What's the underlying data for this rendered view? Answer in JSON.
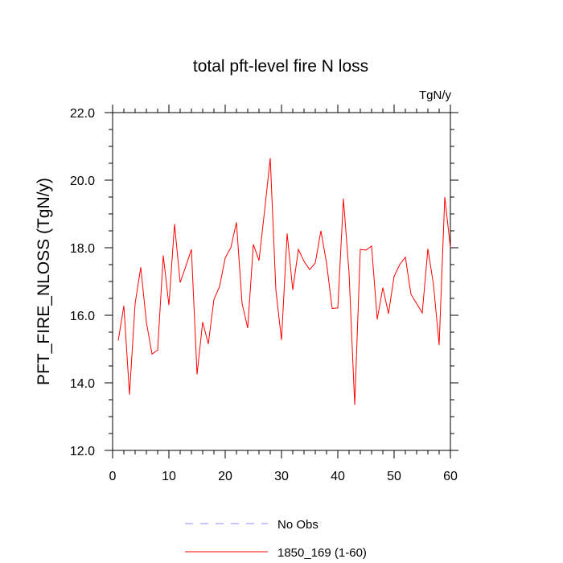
{
  "chart_data": {
    "type": "line",
    "title": "total pft-level fire N loss",
    "units": "TgN/y",
    "xlabel": "",
    "ylabel": "PFT_FIRE_NLOSS  (TgN/y)",
    "xlim": [
      0,
      60
    ],
    "ylim": [
      12.0,
      22.0
    ],
    "xticks": [
      0,
      10,
      20,
      30,
      40,
      50,
      60
    ],
    "yticks": [
      "12.0",
      "14.0",
      "16.0",
      "18.0",
      "20.0",
      "22.0"
    ],
    "grid": false,
    "legend": [
      {
        "name": "No Obs",
        "color": "#8a8aff",
        "style": "dashed"
      },
      {
        "name": "1850_169 (1-60)",
        "color": "#ff0000",
        "style": "solid"
      }
    ],
    "series": [
      {
        "name": "1850_169 (1-60)",
        "color": "#ff0000",
        "x": [
          1,
          2,
          3,
          4,
          5,
          6,
          7,
          8,
          9,
          10,
          11,
          12,
          13,
          14,
          15,
          16,
          17,
          18,
          19,
          20,
          21,
          22,
          23,
          24,
          25,
          26,
          27,
          28,
          29,
          30,
          31,
          32,
          33,
          34,
          35,
          36,
          37,
          38,
          39,
          40,
          41,
          42,
          43,
          44,
          45,
          46,
          47,
          48,
          49,
          50,
          51,
          52,
          53,
          54,
          55,
          56,
          57,
          58,
          59,
          60
        ],
        "values": [
          15.25,
          16.28,
          13.65,
          16.35,
          17.42,
          15.8,
          14.85,
          14.97,
          17.77,
          16.3,
          18.7,
          16.97,
          17.45,
          17.95,
          14.25,
          15.8,
          15.15,
          16.47,
          16.85,
          17.7,
          18.0,
          18.75,
          16.35,
          15.62,
          18.1,
          17.62,
          19.1,
          20.65,
          16.75,
          15.27,
          18.42,
          16.75,
          17.95,
          17.6,
          17.35,
          17.55,
          18.5,
          17.55,
          16.2,
          16.22,
          19.45,
          17.25,
          13.35,
          17.95,
          17.93,
          18.05,
          15.88,
          16.82,
          16.05,
          17.15,
          17.5,
          17.72,
          16.62,
          16.35,
          16.07,
          17.97,
          16.9,
          15.12,
          19.5,
          18.0
        ]
      }
    ]
  }
}
